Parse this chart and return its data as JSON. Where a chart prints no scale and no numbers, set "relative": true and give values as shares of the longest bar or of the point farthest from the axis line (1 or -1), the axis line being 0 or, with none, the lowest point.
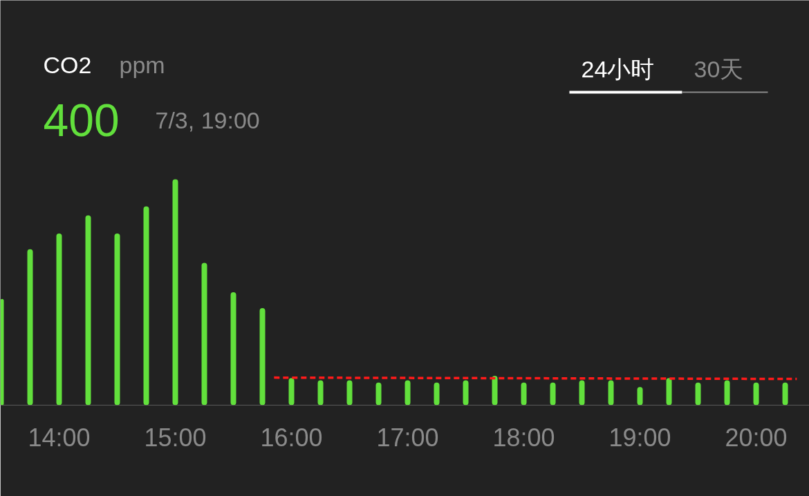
{
  "chart_data": {
    "type": "bar",
    "title": "CO2",
    "subtitle": "ppm",
    "relative": true,
    "x": [
      13.5,
      13.75,
      14,
      14.25,
      14.5,
      14.75,
      15,
      15.25,
      15.5,
      15.75,
      16,
      16.25,
      16.5,
      16.75,
      17,
      17.25,
      17.5,
      17.75,
      18,
      18.25,
      18.5,
      18.75,
      19,
      19.25,
      19.5,
      19.75,
      20,
      20.25
    ],
    "series": [
      {
        "color": "#62e03c",
        "values": [
          0.47,
          0.69,
          0.76,
          0.84,
          0.76,
          0.88,
          1,
          0.63,
          0.5,
          0.43,
          0.12,
          0.11,
          0.11,
          0.1,
          0.11,
          0.1,
          0.11,
          0.13,
          0.1,
          0.1,
          0.11,
          0.11,
          0.08,
          0.12,
          0.1,
          0.11,
          0.1,
          0.1
        ]
      },
      {
        "type": "line",
        "color": "#ff1a1a",
        "line_style": "dashed",
        "x": [
          15.85,
          20.35
        ],
        "values": [
          0.122,
          0.116
        ]
      }
    ],
    "xlim": [
      13.494,
      20.458
    ],
    "xticks": [
      {
        "value": 14,
        "label": "14:00"
      },
      {
        "value": 15,
        "label": "15:00"
      },
      {
        "value": 16,
        "label": "16:00"
      },
      {
        "value": 17,
        "label": "17:00"
      },
      {
        "value": 18,
        "label": "18:00"
      },
      {
        "value": 19,
        "label": "19:00"
      },
      {
        "value": 20,
        "label": "20:00"
      }
    ],
    "tick_labels": "x",
    "annotations": [
      "400",
      "7/3, 19:00",
      "24小时",
      "30天"
    ]
  }
}
